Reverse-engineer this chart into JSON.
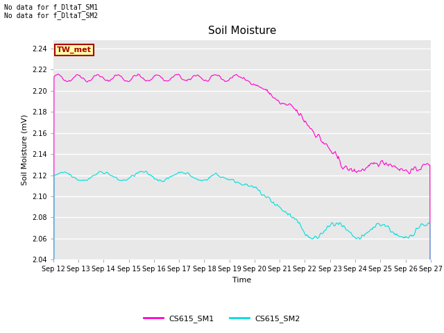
{
  "title": "Soil Moisture",
  "xlabel": "Time",
  "ylabel": "Soil Moisture (mV)",
  "ylim": [
    2.04,
    2.248
  ],
  "yticks": [
    2.04,
    2.06,
    2.08,
    2.1,
    2.12,
    2.14,
    2.16,
    2.18,
    2.2,
    2.22,
    2.24
  ],
  "xtick_labels": [
    "Sep 12",
    "Sep 13",
    "Sep 14",
    "Sep 15",
    "Sep 16",
    "Sep 17",
    "Sep 18",
    "Sep 19",
    "Sep 20",
    "Sep 21",
    "Sep 22",
    "Sep 23",
    "Sep 24",
    "Sep 25",
    "Sep 26",
    "Sep 27"
  ],
  "color_sm1": "#ff00cc",
  "color_sm2": "#00dddd",
  "legend_label_sm1": "CS615_SM1",
  "legend_label_sm2": "CS615_SM2",
  "annotation_text": "No data for f_DltaT_SM1\nNo data for f_DltaT_SM2",
  "tw_met_label": "TW_met",
  "tw_met_bg": "#ffffaa",
  "tw_met_border": "#aa0000",
  "plot_bg_color": "#e8e8e8",
  "grid_color": "#ffffff",
  "title_fontsize": 11,
  "label_fontsize": 8,
  "tick_fontsize": 7
}
